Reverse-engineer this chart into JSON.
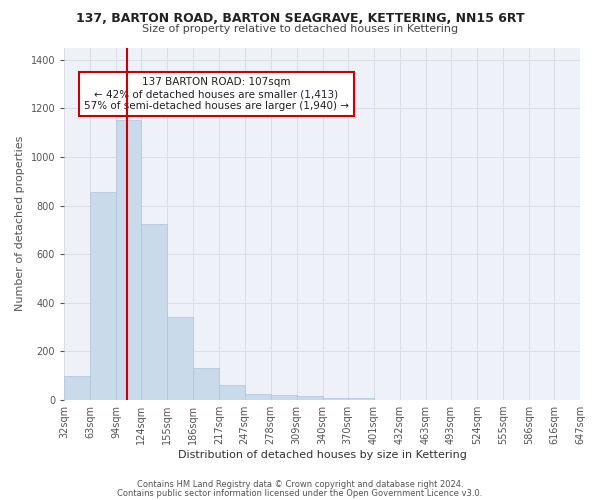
{
  "title": "137, BARTON ROAD, BARTON SEAGRAVE, KETTERING, NN15 6RT",
  "subtitle": "Size of property relative to detached houses in Kettering",
  "xlabel": "Distribution of detached houses by size in Kettering",
  "ylabel": "Number of detached properties",
  "bar_color": "#c9daea",
  "bar_edge_color": "#adc4d8",
  "bg_color": "#ffffff",
  "plot_bg_color": "#eef2f8",
  "grid_color": "#d8dfe8",
  "annotation_text": "137 BARTON ROAD: 107sqm\n← 42% of detached houses are smaller (1,413)\n57% of semi-detached houses are larger (1,940) →",
  "vline_x": 107,
  "vline_color": "#cc0000",
  "footer1": "Contains HM Land Registry data © Crown copyright and database right 2024.",
  "footer2": "Contains public sector information licensed under the Open Government Licence v3.0.",
  "bin_edges": [
    32,
    63,
    94,
    124,
    155,
    186,
    217,
    247,
    278,
    309,
    340,
    370,
    401,
    432,
    463,
    493,
    524,
    555,
    586,
    616,
    647
  ],
  "bar_heights": [
    100,
    855,
    1150,
    725,
    340,
    130,
    60,
    25,
    20,
    15,
    10,
    10,
    0,
    0,
    0,
    0,
    0,
    0,
    0,
    0
  ],
  "ylim": [
    0,
    1450
  ],
  "annotation_box_color": "#ffffff",
  "annotation_box_edge": "#cc0000",
  "title_fontsize": 9,
  "subtitle_fontsize": 8,
  "ylabel_fontsize": 8,
  "xlabel_fontsize": 8,
  "tick_fontsize": 7,
  "footer_fontsize": 6,
  "annotation_fontsize": 7.5
}
